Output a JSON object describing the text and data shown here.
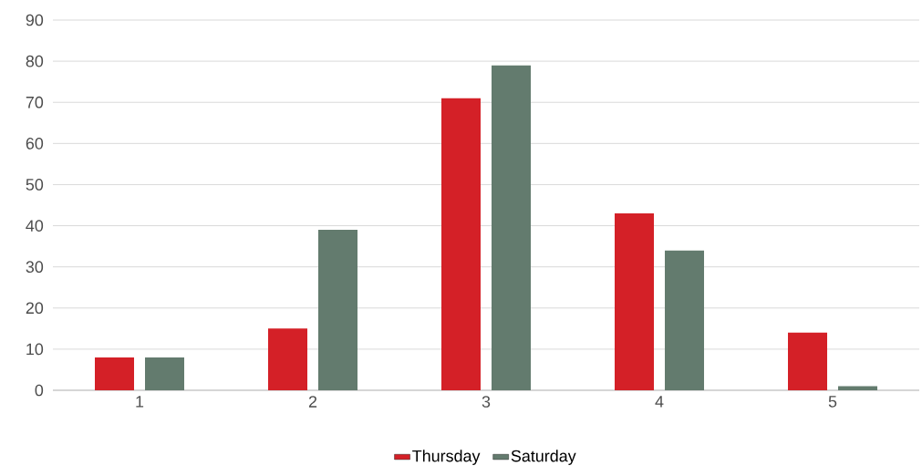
{
  "chart_data": {
    "type": "bar",
    "categories": [
      "1",
      "2",
      "3",
      "4",
      "5"
    ],
    "series": [
      {
        "name": "Thursday",
        "color": "#d42027",
        "values": [
          8,
          15,
          71,
          43,
          14
        ]
      },
      {
        "name": "Saturday",
        "color": "#637b6e",
        "values": [
          8,
          39,
          79,
          34,
          1
        ]
      }
    ],
    "ylim": [
      0,
      90
    ],
    "yticks": [
      0,
      10,
      20,
      30,
      40,
      50,
      60,
      70,
      80,
      90
    ],
    "grid": "y",
    "legend": "bottom"
  }
}
